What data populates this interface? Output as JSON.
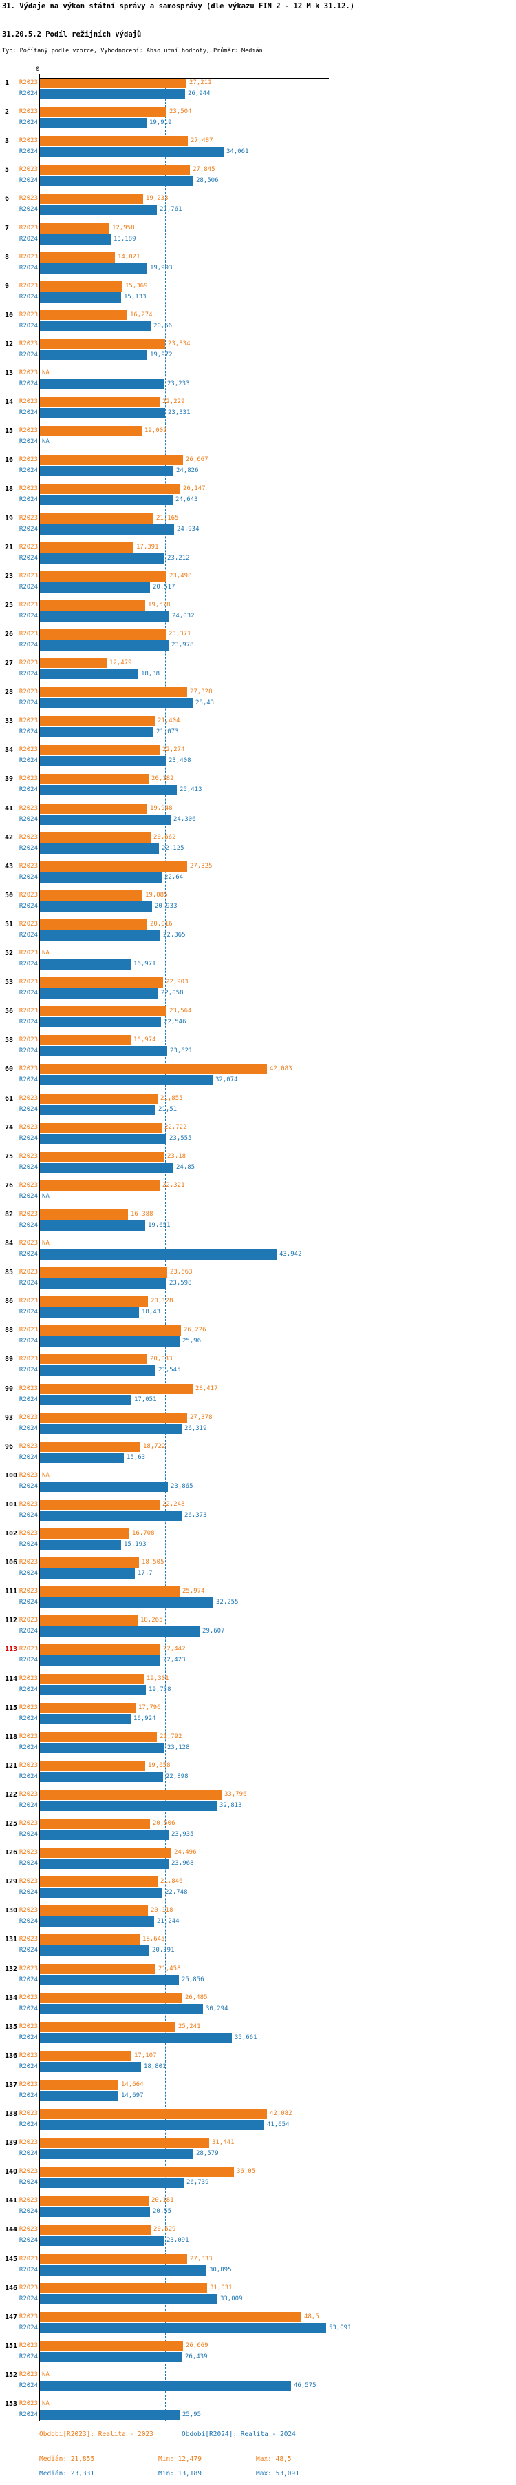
{
  "header": {
    "title": "31. Výdaje na výkon státní správy a samosprávy (dle výkazu FIN 2 - 12 M k 31.12.)",
    "subtitle": "31.20.5.2 Podíl režijních výdajů",
    "meta": "Typ: Počítaný podle vzorce, Vyhodnocení: Absolutní hodnoty, Průměr: Medián"
  },
  "colors": {
    "r2023": "#ef7d1a",
    "r2024": "#1f77b4",
    "highlight": "#d40000",
    "axis": "#000000"
  },
  "chart_data": {
    "type": "bar",
    "orientation": "horizontal",
    "title": "31.20.5.2 Podíl režijních výdajů",
    "xlabel": "",
    "ylabel": "",
    "xlim": [
      0,
      53.6
    ],
    "grid": false,
    "legend_position": "bottom",
    "zero_tick_label": "0",
    "na_label": "NA",
    "decimal_separator": ",",
    "highlighted_categories": [
      "113"
    ],
    "median_lines": [
      {
        "series": "R2023",
        "value": 21.855,
        "color": "#ef7d1a"
      },
      {
        "series": "R2024",
        "value": 23.331,
        "color": "#1f77b4"
      }
    ],
    "categories": [
      "1",
      "2",
      "3",
      "5",
      "6",
      "7",
      "8",
      "9",
      "10",
      "12",
      "13",
      "14",
      "15",
      "16",
      "18",
      "19",
      "21",
      "23",
      "25",
      "26",
      "27",
      "28",
      "33",
      "34",
      "39",
      "41",
      "42",
      "43",
      "50",
      "51",
      "52",
      "53",
      "56",
      "58",
      "60",
      "61",
      "74",
      "75",
      "76",
      "82",
      "84",
      "85",
      "86",
      "88",
      "89",
      "90",
      "93",
      "96",
      "100",
      "101",
      "102",
      "106",
      "111",
      "112",
      "113",
      "114",
      "115",
      "118",
      "121",
      "122",
      "125",
      "126",
      "129",
      "130",
      "131",
      "132",
      "134",
      "135",
      "136",
      "137",
      "138",
      "139",
      "140",
      "141",
      "144",
      "145",
      "146",
      "147",
      "151",
      "152",
      "153"
    ],
    "series": [
      {
        "name": "R2023",
        "color": "#ef7d1a",
        "values": [
          "27,211",
          "23,504",
          "27,487",
          "27,845",
          "19,233",
          "12,958",
          "14,021",
          "15,369",
          "16,274",
          "23,334",
          "NA",
          "22,229",
          "19,002",
          "26,667",
          "26,147",
          "21,165",
          "17,391",
          "23,498",
          "19,578",
          "23,371",
          "12,479",
          "27,328",
          "21,404",
          "22,274",
          "20,182",
          "19,948",
          "20,662",
          "27,325",
          "19,085",
          "20,016",
          "NA",
          "22,903",
          "23,564",
          "16,974",
          "42,083",
          "21,855",
          "22,722",
          "23,18",
          "22,321",
          "16,388",
          "NA",
          "23,663",
          "20,128",
          "26,226",
          "20,033",
          "28,417",
          "27,378",
          "18,722",
          "NA",
          "22,248",
          "16,708",
          "18,505",
          "25,974",
          "18,265",
          "22,442",
          "19,301",
          "17,796",
          "21,792",
          "19,658",
          "33,796",
          "20,506",
          "24,496",
          "21,846",
          "20,118",
          "18,645",
          "21,458",
          "26,485",
          "25,241",
          "17,107",
          "14,664",
          "42,082",
          "31,441",
          "36,05",
          "20,181",
          "20,629",
          "27,333",
          "31,031",
          "48,5",
          "26,669",
          "NA",
          "NA"
        ]
      },
      {
        "name": "R2024",
        "color": "#1f77b4",
        "values": [
          "26,944",
          "19,919",
          "34,061",
          "28,506",
          "21,761",
          "13,189",
          "19,993",
          "15,133",
          "20,66",
          "19,972",
          "23,233",
          "23,331",
          "NA",
          "24,826",
          "24,643",
          "24,934",
          "23,212",
          "20,517",
          "24,032",
          "23,978",
          "18,38",
          "28,43",
          "21,073",
          "23,408",
          "25,413",
          "24,306",
          "22,125",
          "22,64",
          "20,933",
          "22,365",
          "16,971",
          "22,058",
          "22,546",
          "23,621",
          "32,074",
          "21,51",
          "23,555",
          "24,85",
          "NA",
          "19,651",
          "43,942",
          "23,598",
          "18,43",
          "25,96",
          "21,545",
          "17,051",
          "26,319",
          "15,63",
          "23,865",
          "26,373",
          "15,193",
          "17,7",
          "32,255",
          "29,607",
          "22,423",
          "19,738",
          "16,924",
          "23,128",
          "22,898",
          "32,813",
          "23,935",
          "23,968",
          "22,748",
          "21,244",
          "20,391",
          "25,856",
          "30,294",
          "35,661",
          "18,801",
          "14,697",
          "41,654",
          "28,579",
          "26,739",
          "20,55",
          "23,091",
          "30,895",
          "33,009",
          "53,091",
          "26,439",
          "46,575",
          "25,95"
        ]
      }
    ]
  },
  "legend": {
    "period_r2023": "Období[R2023]: Realita - 2023",
    "period_r2024": "Období[R2024]: Realita - 2024",
    "r2023_stats": {
      "median": "Medián: 21,855",
      "min": "Min: 12,479",
      "max": "Max: 48,5"
    },
    "r2024_stats": {
      "median": "Medián: 23,331",
      "min": "Min: 13,189",
      "max": "Max: 53,091"
    }
  }
}
